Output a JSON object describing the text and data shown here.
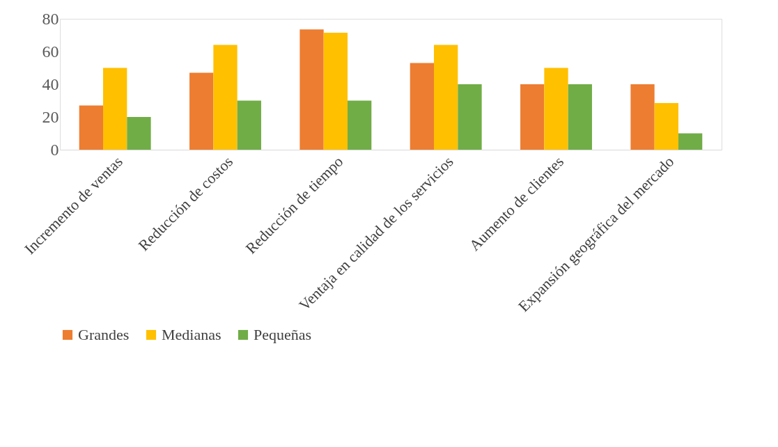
{
  "chart_data": {
    "type": "bar",
    "categories": [
      "Incremento de ventas",
      "Reducción de costos",
      "Reducción de tiempo",
      "Ventaja en calidad de los servicios",
      "Aumento de clientes",
      "Expansión geográfica del mercado"
    ],
    "series": [
      {
        "name": "Grandes",
        "color": "#ed7d31",
        "values": [
          27,
          47,
          73.5,
          53,
          40,
          40
        ]
      },
      {
        "name": "Medianas",
        "color": "#ffc000",
        "values": [
          50,
          64,
          71.5,
          64,
          50,
          28.5
        ]
      },
      {
        "name": "Pequeñas",
        "color": "#70ad47",
        "values": [
          20,
          30,
          30,
          40,
          40,
          10
        ]
      }
    ],
    "ylim": [
      0,
      80
    ],
    "yticks": [
      0,
      20,
      40,
      60,
      80
    ],
    "grid": false,
    "legend": "bottom"
  }
}
